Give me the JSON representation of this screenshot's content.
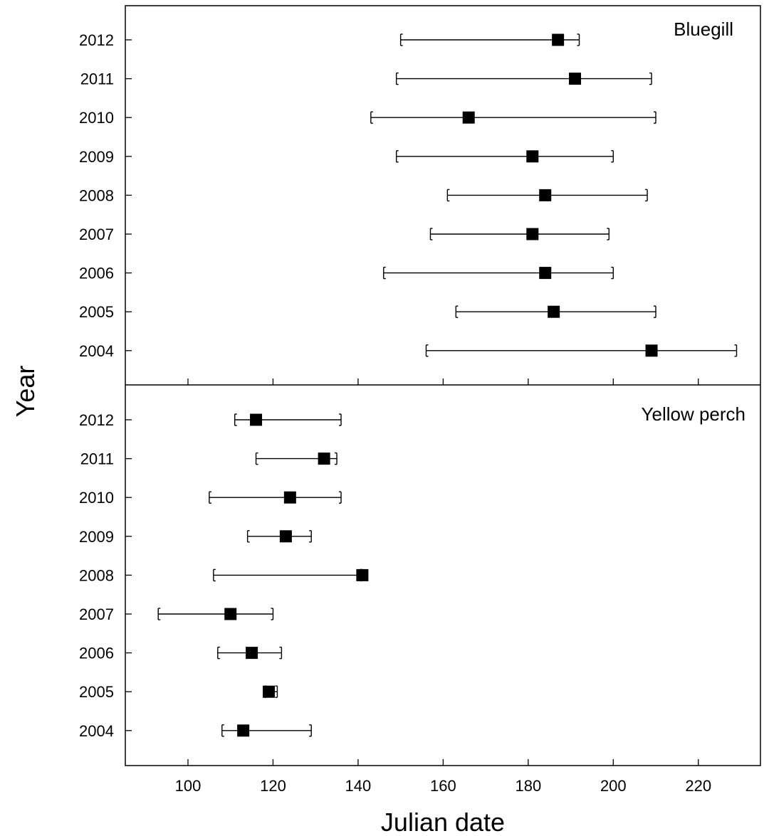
{
  "chart_data": {
    "type": "scatter",
    "xlabel": "Julian date",
    "ylabel": "Year",
    "xlim": [
      85,
      235
    ],
    "xticks": [
      100,
      120,
      140,
      160,
      180,
      200,
      220
    ],
    "xtick_labels": [
      "100",
      "120",
      "140",
      "160",
      "180",
      "200",
      "220"
    ],
    "years": [
      "2004",
      "2005",
      "2006",
      "2007",
      "2008",
      "2009",
      "2010",
      "2011",
      "2012"
    ],
    "marker": "square",
    "marker_color": "#000000",
    "error_bars": true,
    "grid": false,
    "panels": [
      {
        "label": "Bluegill",
        "label_position": "top-right",
        "series": [
          {
            "year": "2012",
            "x": 187,
            "low": 150,
            "high": 192
          },
          {
            "year": "2011",
            "x": 191,
            "low": 149,
            "high": 209
          },
          {
            "year": "2010",
            "x": 166,
            "low": 143,
            "high": 210
          },
          {
            "year": "2009",
            "x": 181,
            "low": 149,
            "high": 200
          },
          {
            "year": "2008",
            "x": 184,
            "low": 161,
            "high": 208
          },
          {
            "year": "2007",
            "x": 181,
            "low": 157,
            "high": 199
          },
          {
            "year": "2006",
            "x": 184,
            "low": 146,
            "high": 200
          },
          {
            "year": "2005",
            "x": 186,
            "low": 163,
            "high": 210
          },
          {
            "year": "2004",
            "x": 209,
            "low": 156,
            "high": 229
          }
        ]
      },
      {
        "label": "Yellow perch",
        "label_position": "top-right",
        "series": [
          {
            "year": "2012",
            "x": 116,
            "low": 111,
            "high": 136
          },
          {
            "year": "2011",
            "x": 132,
            "low": 116,
            "high": 135
          },
          {
            "year": "2010",
            "x": 124,
            "low": 105,
            "high": 136
          },
          {
            "year": "2009",
            "x": 123,
            "low": 114,
            "high": 129
          },
          {
            "year": "2008",
            "x": 141,
            "low": 106,
            "high": 141
          },
          {
            "year": "2007",
            "x": 110,
            "low": 93,
            "high": 120
          },
          {
            "year": "2006",
            "x": 115,
            "low": 107,
            "high": 122
          },
          {
            "year": "2005",
            "x": 119,
            "low": 118,
            "high": 121
          },
          {
            "year": "2004",
            "x": 113,
            "low": 108,
            "high": 129
          }
        ]
      }
    ]
  }
}
